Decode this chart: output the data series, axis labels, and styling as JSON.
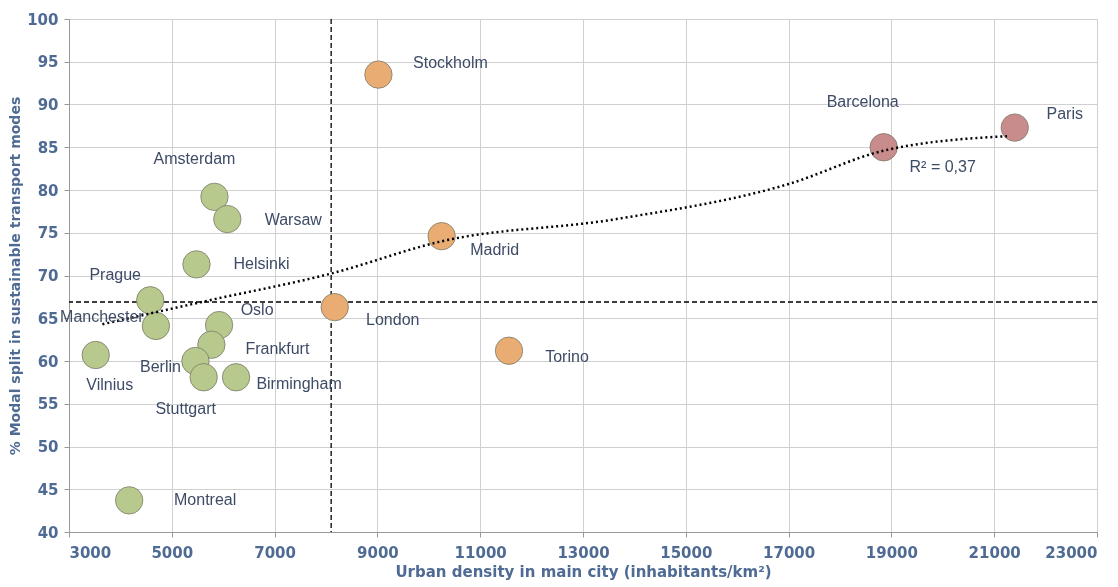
{
  "chart_data": {
    "type": "scatter",
    "xlabel": "Urban density in main city (inhabitants/km²)",
    "ylabel": "% Modal split in sustainable transport modes",
    "xlim": [
      3000,
      23000
    ],
    "xticks": [
      3000,
      5000,
      7000,
      9000,
      11000,
      13000,
      15000,
      17000,
      19000,
      21000,
      23000
    ],
    "ylim": [
      40,
      100
    ],
    "yticks": [
      40,
      45,
      50,
      55,
      60,
      65,
      70,
      75,
      80,
      85,
      90,
      95,
      100
    ],
    "grid": true,
    "series": [
      {
        "color": "#b7c98c",
        "marker": "circle",
        "x": [
          5830,
          6080,
          5480,
          4580,
          4690,
          5920,
          5770,
          5460,
          5620,
          6250,
          3520,
          4170
        ],
        "values": [
          79.2,
          76.6,
          71.3,
          67.1,
          64.1,
          64.2,
          61.9,
          60.0,
          58.1,
          58.1,
          60.7,
          43.7
        ]
      },
      {
        "color": "#e9ac72",
        "marker": "circle",
        "x": [
          9020,
          10250,
          8170,
          11560
        ],
        "values": [
          93.5,
          74.6,
          66.3,
          61.2
        ]
      },
      {
        "color": "#c98c8c",
        "marker": "circle",
        "x": [
          18850,
          21400
        ],
        "values": [
          85.0,
          87.3
        ]
      },
      {
        "type": "line",
        "color": "#000000",
        "marker": "none",
        "line_style": "dotted",
        "x": [
          3650,
          5730,
          8080,
          10250,
          13650,
          17000,
          18850,
          21250
        ],
        "values": [
          64.3,
          67.1,
          70.2,
          74.0,
          76.6,
          80.7,
          84.6,
          86.3
        ]
      }
    ],
    "ref_lines": [
      {
        "axis": "x",
        "value": 8100,
        "color": "#000000",
        "line_style": "dashed"
      },
      {
        "axis": "y",
        "value": 66.9,
        "color": "#000000",
        "line_style": "dashed"
      }
    ],
    "annotations": [
      {
        "text": "Stockholm",
        "x": 9020,
        "y": 93.5
      },
      {
        "text": "Barcelona",
        "x": 18850,
        "y": 85.0
      },
      {
        "text": "Paris",
        "x": 21400,
        "y": 87.3
      },
      {
        "text": "R² = 0,37",
        "x": 18850,
        "y": 84.6
      },
      {
        "text": "Madrid",
        "x": 10250,
        "y": 74.6
      },
      {
        "text": "London",
        "x": 8170,
        "y": 66.3
      },
      {
        "text": "Torino",
        "x": 11560,
        "y": 61.2
      },
      {
        "text": "Amsterdam",
        "x": 5830,
        "y": 79.2
      },
      {
        "text": "Warsaw",
        "x": 6080,
        "y": 76.6
      },
      {
        "text": "Helsinki",
        "x": 5480,
        "y": 71.3
      },
      {
        "text": "Prague",
        "x": 4580,
        "y": 67.1
      },
      {
        "text": "Manchester",
        "x": 4690,
        "y": 64.1
      },
      {
        "text": "Oslo",
        "x": 5920,
        "y": 64.2
      },
      {
        "text": "Frankfurt",
        "x": 5770,
        "y": 61.9
      },
      {
        "text": "Berlin",
        "x": 5460,
        "y": 60.0
      },
      {
        "text": "Vilnius",
        "x": 3520,
        "y": 60.7
      },
      {
        "text": "Stuttgart",
        "x": 5620,
        "y": 58.1
      },
      {
        "text": "Birmingham",
        "x": 6250,
        "y": 58.1
      },
      {
        "text": "Montreal",
        "x": 4170,
        "y": 43.7
      }
    ]
  }
}
